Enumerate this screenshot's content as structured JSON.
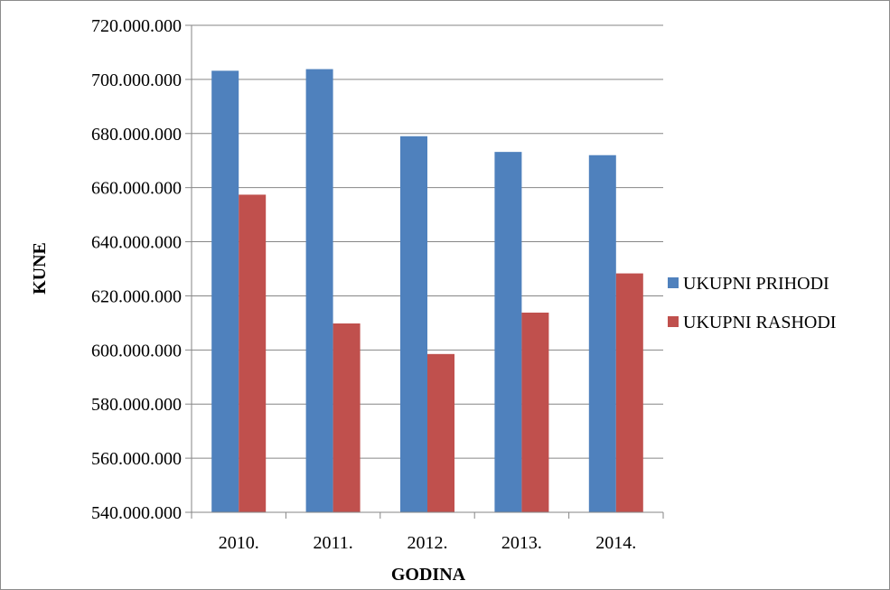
{
  "chart_data": {
    "type": "bar",
    "xlabel": "GODINA",
    "ylabel": "KUNE",
    "categories": [
      "2010.",
      "2011.",
      "2012.",
      "2013.",
      "2014."
    ],
    "series": [
      {
        "name": "UKUPNI PRIHODI",
        "color": "#4f81bd",
        "values": [
          703200000,
          703800000,
          679000000,
          673200000,
          672000000
        ]
      },
      {
        "name": "UKUPNI RASHODI",
        "color": "#c0504d",
        "values": [
          657400000,
          609800000,
          598500000,
          613800000,
          628300000
        ]
      }
    ],
    "ylim": [
      540000000,
      720000000
    ],
    "yticks": [
      540000000,
      560000000,
      580000000,
      600000000,
      620000000,
      640000000,
      660000000,
      680000000,
      700000000,
      720000000
    ],
    "ytick_labels": [
      "540.000.000",
      "560.000.000",
      "580.000.000",
      "600.000.000",
      "620.000.000",
      "640.000.000",
      "660.000.000",
      "680.000.000",
      "700.000.000",
      "720.000.000"
    ],
    "grid": true,
    "legend_position": "right"
  }
}
